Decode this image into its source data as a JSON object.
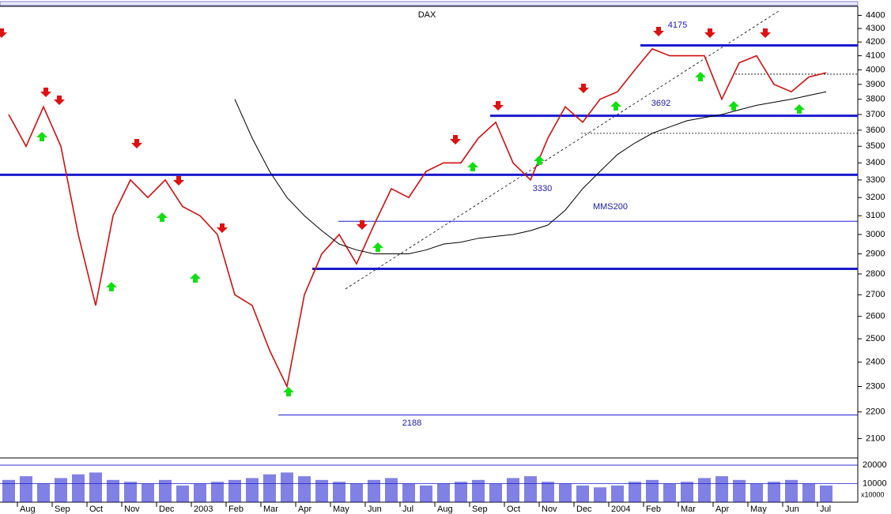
{
  "chart_data": {
    "type": "line",
    "title": "DAX",
    "log_y": true,
    "categories": [
      null,
      "Aug",
      null,
      "Sep",
      null,
      "Oct",
      null,
      "Nov",
      null,
      "Dec",
      null,
      "2003",
      null,
      "Feb",
      null,
      "Mar",
      null,
      "Apr",
      null,
      "May",
      null,
      "Jun",
      null,
      "Jul",
      null,
      "Aug",
      null,
      "Sep",
      null,
      "Oct",
      null,
      "Nov",
      null,
      "Dec",
      null,
      "2004",
      null,
      "Feb",
      null,
      "Mar",
      null,
      "Apr",
      null,
      "May",
      null,
      "Jun",
      null,
      "Jul"
    ],
    "series": [
      {
        "name": "DAX",
        "color": "#d01010",
        "values": [
          3700,
          3500,
          3750,
          3500,
          3000,
          2650,
          3100,
          3300,
          3200,
          3300,
          3150,
          3100,
          3000,
          2700,
          2650,
          2450,
          2300,
          2700,
          2900,
          3000,
          2850,
          3050,
          3250,
          3200,
          3350,
          3400,
          3400,
          3550,
          3650,
          3400,
          3300,
          3550,
          3750,
          3650,
          3800,
          3850,
          4000,
          4150,
          4100,
          4100,
          4100,
          3800,
          4050,
          4100,
          3900,
          3850,
          3950,
          3980
        ]
      },
      {
        "name": "MMS200",
        "color": "#000000",
        "values": [
          null,
          null,
          null,
          null,
          null,
          null,
          null,
          null,
          null,
          null,
          null,
          null,
          null,
          3800,
          3550,
          3350,
          3200,
          3100,
          3020,
          2950,
          2920,
          2900,
          2900,
          2900,
          2920,
          2950,
          2960,
          2980,
          2990,
          3000,
          3020,
          3050,
          3130,
          3250,
          3350,
          3450,
          3520,
          3580,
          3620,
          3660,
          3680,
          3700,
          3730,
          3760,
          3780,
          3800,
          3825,
          3850
        ]
      }
    ],
    "ylim": [
      2030,
      4470
    ],
    "yticks": [
      2100,
      2200,
      2300,
      2400,
      2500,
      2600,
      2700,
      2800,
      2900,
      3000,
      3100,
      3200,
      3300,
      3400,
      3500,
      3600,
      3700,
      3800,
      3900,
      4000,
      4100,
      4200,
      4300,
      4400
    ],
    "levels": [
      {
        "value": 4175,
        "thick": true
      },
      {
        "value": 3692,
        "thick": true
      },
      {
        "value": 3330,
        "thick": true
      },
      {
        "value": 3070,
        "thick": false
      },
      {
        "value": 2825,
        "thick": true
      },
      {
        "value": 2188,
        "thick": false
      },
      {
        "value": 3970,
        "thick": false,
        "dashed": true
      },
      {
        "value": 3580,
        "thick": false,
        "dashed": true
      }
    ],
    "annotations": [
      "4175",
      "3692",
      "3330",
      "2188",
      "MMS200"
    ],
    "volume": {
      "color": "#1a1ad0",
      "values": [
        12000,
        14000,
        10000,
        13000,
        15000,
        16000,
        12000,
        11000,
        10000,
        12000,
        9000,
        10000,
        11000,
        12000,
        13000,
        15000,
        16000,
        14000,
        12000,
        11000,
        10000,
        12000,
        13000,
        10000,
        9000,
        10000,
        11000,
        12000,
        10000,
        13000,
        14000,
        11000,
        10000,
        9000,
        8000,
        9000,
        11000,
        12000,
        10000,
        11000,
        13000,
        14000,
        12000,
        10000,
        11000,
        12000,
        10000,
        9000
      ],
      "ylim": [
        0,
        23000
      ],
      "yticks": [
        10000,
        20000
      ],
      "unit_label": "x10000"
    }
  }
}
